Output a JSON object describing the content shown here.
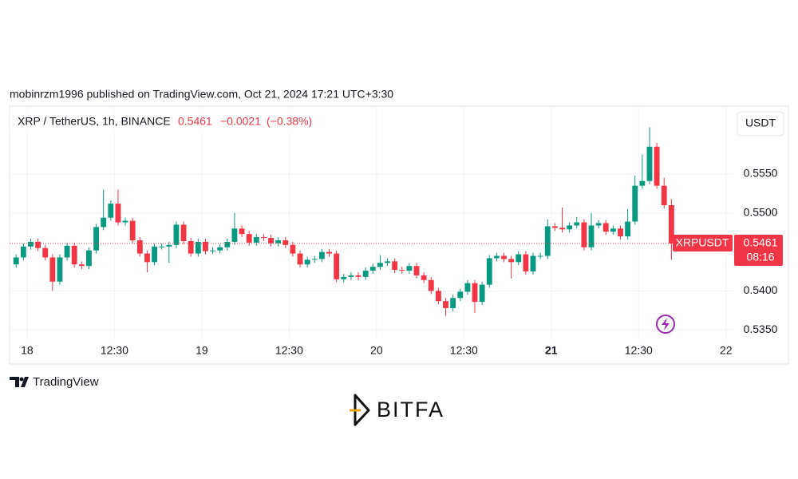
{
  "header": {
    "published": "mobinrzm1996 published on TradingView.com, Oct 21, 2024 17:21 UTC+3:30"
  },
  "chart_data": {
    "type": "candlestick",
    "title": "XRP / TetherUS, 1h, BINANCE",
    "last_price": 0.5461,
    "change": "−0.0021",
    "change_percent": "(−0.38%)",
    "symbol": "XRPUSDT",
    "countdown": "08:16",
    "currency_button": "USDT",
    "up_color": "#089981",
    "down_color": "#f23645",
    "grid": true,
    "xlim": [
      -2.4,
      96.9
    ],
    "ylim": [
      0.5338,
      0.5637
    ],
    "xticks": [
      {
        "value": 0,
        "label": "18"
      },
      {
        "value": 12,
        "label": "12:30"
      },
      {
        "value": 24,
        "label": "19"
      },
      {
        "value": 36,
        "label": "12:30"
      },
      {
        "value": 48,
        "label": "20"
      },
      {
        "value": 60,
        "label": "12:30"
      },
      {
        "value": 72,
        "label": "21"
      },
      {
        "value": 84,
        "label": "12:30"
      },
      {
        "value": 96,
        "label": "22"
      }
    ],
    "yticks": [
      {
        "value": 0.535,
        "label": "0.5350"
      },
      {
        "value": 0.54,
        "label": "0.5400"
      },
      {
        "value": 0.55,
        "label": "0.5500"
      },
      {
        "value": 0.555,
        "label": "0.5550"
      }
    ],
    "x": [
      -1.5,
      -0.5,
      0.5,
      1.5,
      2.5,
      3.5,
      4.5,
      5.5,
      6.5,
      7.5,
      8.5,
      9.5,
      10.5,
      11.5,
      12.5,
      13.5,
      14.5,
      15.5,
      16.5,
      17.5,
      18.5,
      19.5,
      20.5,
      21.5,
      22.5,
      23.5,
      24.5,
      25.5,
      26.5,
      27.5,
      28.5,
      29.5,
      30.5,
      31.5,
      32.5,
      33.5,
      34.5,
      35.5,
      36.5,
      37.5,
      38.5,
      39.5,
      40.5,
      41.5,
      42.5,
      43.5,
      44.5,
      45.5,
      46.5,
      47.5,
      48.5,
      49.5,
      50.5,
      51.5,
      52.5,
      53.5,
      54.5,
      55.5,
      56.5,
      57.5,
      58.5,
      59.5,
      60.5,
      61.5,
      62.5,
      63.5,
      64.5,
      65.5,
      66.5,
      67.5,
      68.5,
      69.5,
      70.5,
      71.5,
      72.5,
      73.5,
      74.5,
      75.5,
      76.5,
      77.5,
      78.5,
      79.5,
      80.5,
      81.5,
      82.5,
      83.5,
      84.5,
      85.5,
      86.5,
      87.5,
      88.5
    ],
    "open": [
      0.5434,
      0.5443,
      0.5457,
      0.5463,
      0.5455,
      0.5443,
      0.5412,
      0.5443,
      0.5458,
      0.5434,
      0.5432,
      0.5452,
      0.5482,
      0.5494,
      0.5512,
      0.5488,
      0.549,
      0.5465,
      0.5448,
      0.5437,
      0.5457,
      0.5457,
      0.5459,
      0.5485,
      0.5464,
      0.5448,
      0.5463,
      0.5451,
      0.5452,
      0.5456,
      0.5463,
      0.548,
      0.5473,
      0.5462,
      0.5469,
      0.5468,
      0.5461,
      0.5465,
      0.5459,
      0.5448,
      0.5434,
      0.544,
      0.5441,
      0.545,
      0.5448,
      0.5415,
      0.5418,
      0.542,
      0.5418,
      0.5426,
      0.5431,
      0.5436,
      0.5438,
      0.5427,
      0.5426,
      0.5432,
      0.542,
      0.5414,
      0.54,
      0.5387,
      0.5378,
      0.5391,
      0.5399,
      0.541,
      0.5386,
      0.5408,
      0.5442,
      0.5445,
      0.5441,
      0.5437,
      0.5447,
      0.5425,
      0.5445,
      0.5445,
      0.5483,
      0.5481,
      0.5479,
      0.5484,
      0.5488,
      0.5456,
      0.5484,
      0.5487,
      0.5476,
      0.548,
      0.547,
      0.5489,
      0.5535,
      0.5541,
      0.5585,
      0.5535,
      0.551
    ],
    "high": [
      0.5447,
      0.5461,
      0.5467,
      0.5467,
      0.5459,
      0.5447,
      0.5447,
      0.5462,
      0.5462,
      0.5438,
      0.5456,
      0.5486,
      0.553,
      0.5516,
      0.553,
      0.5494,
      0.5494,
      0.5469,
      0.5452,
      0.5461,
      0.5461,
      0.5463,
      0.5489,
      0.5489,
      0.5468,
      0.5467,
      0.5467,
      0.5456,
      0.546,
      0.5467,
      0.55,
      0.5484,
      0.5477,
      0.5473,
      0.5473,
      0.5472,
      0.5469,
      0.5469,
      0.5463,
      0.5452,
      0.5444,
      0.5445,
      0.5454,
      0.5454,
      0.5452,
      0.5422,
      0.5424,
      0.5424,
      0.543,
      0.5435,
      0.5446,
      0.5442,
      0.5442,
      0.5431,
      0.5436,
      0.5436,
      0.5424,
      0.5418,
      0.5404,
      0.5391,
      0.5395,
      0.5403,
      0.5414,
      0.5414,
      0.5412,
      0.5446,
      0.5449,
      0.5449,
      0.5445,
      0.5451,
      0.5451,
      0.5449,
      0.5449,
      0.5492,
      0.5487,
      0.5507,
      0.5488,
      0.5495,
      0.5492,
      0.55,
      0.5491,
      0.5491,
      0.5484,
      0.5484,
      0.5505,
      0.5548,
      0.5575,
      0.561,
      0.559,
      0.5545,
      0.5518
    ],
    "low": [
      0.543,
      0.5439,
      0.5453,
      0.5451,
      0.5439,
      0.54,
      0.5408,
      0.5439,
      0.543,
      0.5428,
      0.5428,
      0.5448,
      0.5478,
      0.549,
      0.5484,
      0.5484,
      0.5461,
      0.5444,
      0.5424,
      0.5433,
      0.5453,
      0.5436,
      0.5455,
      0.546,
      0.5444,
      0.5444,
      0.5447,
      0.5447,
      0.5448,
      0.5452,
      0.5459,
      0.5469,
      0.5458,
      0.5458,
      0.5464,
      0.5457,
      0.5457,
      0.5455,
      0.5444,
      0.543,
      0.543,
      0.5436,
      0.5437,
      0.5444,
      0.5411,
      0.5411,
      0.5414,
      0.5414,
      0.5414,
      0.5422,
      0.5427,
      0.5432,
      0.5423,
      0.5422,
      0.5422,
      0.5416,
      0.541,
      0.5396,
      0.5383,
      0.5368,
      0.5374,
      0.5387,
      0.5395,
      0.5372,
      0.5382,
      0.5404,
      0.5438,
      0.5437,
      0.5416,
      0.5433,
      0.5421,
      0.5421,
      0.5441,
      0.5441,
      0.5477,
      0.5475,
      0.5475,
      0.548,
      0.5452,
      0.5452,
      0.548,
      0.5472,
      0.5472,
      0.5466,
      0.5466,
      0.5485,
      0.5531,
      0.5537,
      0.5531,
      0.5506,
      0.544
    ],
    "close": [
      0.5443,
      0.5457,
      0.5463,
      0.5455,
      0.5443,
      0.5412,
      0.5443,
      0.5458,
      0.5434,
      0.5432,
      0.5452,
      0.5482,
      0.5494,
      0.5512,
      0.5488,
      0.549,
      0.5465,
      0.5448,
      0.5437,
      0.5457,
      0.5457,
      0.5459,
      0.5485,
      0.5464,
      0.5448,
      0.5463,
      0.5451,
      0.5452,
      0.5456,
      0.5463,
      0.548,
      0.5473,
      0.5462,
      0.5469,
      0.5468,
      0.5461,
      0.5465,
      0.5459,
      0.5448,
      0.5434,
      0.544,
      0.5441,
      0.545,
      0.5448,
      0.5415,
      0.5418,
      0.542,
      0.5418,
      0.5426,
      0.5431,
      0.5436,
      0.5438,
      0.5427,
      0.5426,
      0.5432,
      0.542,
      0.5414,
      0.54,
      0.5387,
      0.5378,
      0.5391,
      0.5399,
      0.541,
      0.5386,
      0.5408,
      0.5442,
      0.5445,
      0.5441,
      0.5437,
      0.5447,
      0.5425,
      0.5445,
      0.5445,
      0.5483,
      0.5481,
      0.5479,
      0.5484,
      0.5488,
      0.5456,
      0.5484,
      0.5487,
      0.5476,
      0.548,
      0.547,
      0.5489,
      0.5535,
      0.5541,
      0.5585,
      0.5535,
      0.551,
      0.5461
    ]
  },
  "footer": {
    "brand": "TradingView",
    "logo": "BITFA"
  }
}
